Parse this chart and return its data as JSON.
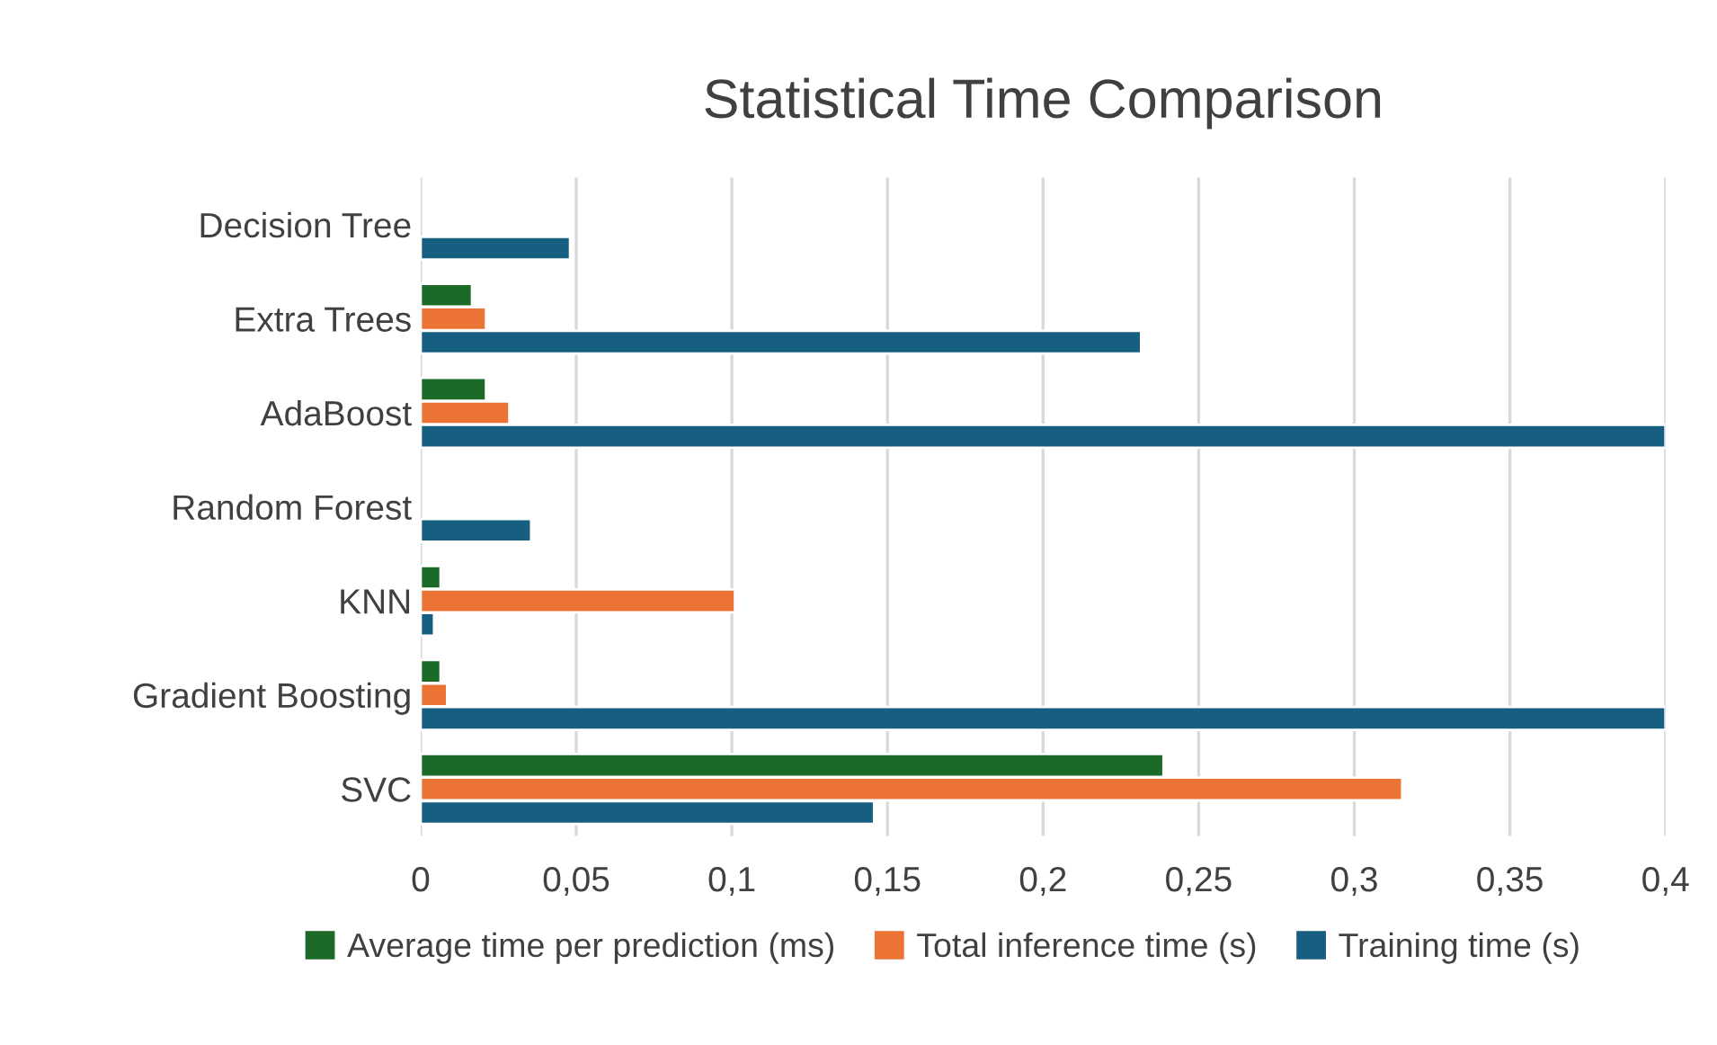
{
  "chart_data": {
    "type": "bar",
    "orientation": "horizontal",
    "title": "Statistical Time Comparison",
    "categories": [
      "Decision Tree",
      "Extra Trees",
      "AdaBoost",
      "Random Forest",
      "KNN",
      "Gradient Boosting",
      "SVC"
    ],
    "series": [
      {
        "name": "Average time per prediction (ms)",
        "color": "#1b6a27",
        "values": [
          null,
          0.0165,
          0.021,
          null,
          0.0064,
          0.0064,
          0.2387
        ]
      },
      {
        "name": "Total inference time (s)",
        "color": "#eb7333",
        "values": [
          null,
          0.021,
          0.0285,
          null,
          0.101,
          0.0085,
          0.3154
        ]
      },
      {
        "name": "Training time (s)",
        "color": "#175f80",
        "values": [
          0.048,
          0.2315,
          0.4,
          0.0355,
          0.0043,
          0.4,
          0.1457
        ]
      }
    ],
    "xlim": [
      0,
      0.4
    ],
    "xticks": [
      0,
      {
        "value": 0.05,
        "label": "0,05"
      },
      {
        "value": 0.1,
        "label": "0,1"
      },
      {
        "value": 0.15,
        "label": "0,15"
      },
      {
        "value": 0.2,
        "label": "0,2"
      },
      {
        "value": 0.25,
        "label": "0,25"
      },
      {
        "value": 0.3,
        "label": "0,3"
      },
      {
        "value": 0.35,
        "label": "0,35"
      },
      {
        "value": 0.4,
        "label": "0,4"
      }
    ],
    "grid": "x",
    "legend": "bottom"
  }
}
